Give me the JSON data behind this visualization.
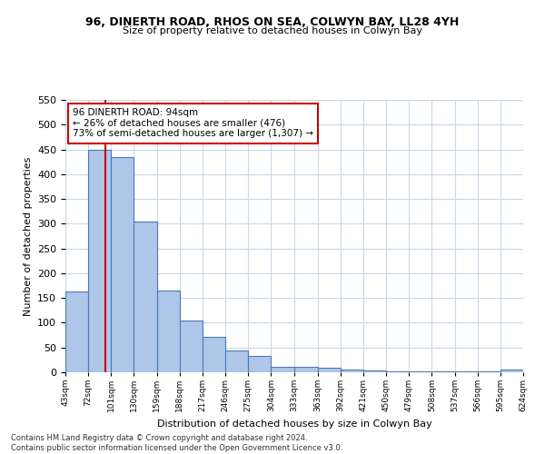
{
  "title1": "96, DINERTH ROAD, RHOS ON SEA, COLWYN BAY, LL28 4YH",
  "title2": "Size of property relative to detached houses in Colwyn Bay",
  "xlabel": "Distribution of detached houses by size in Colwyn Bay",
  "ylabel": "Number of detached properties",
  "footer1": "Contains HM Land Registry data © Crown copyright and database right 2024.",
  "footer2": "Contains public sector information licensed under the Open Government Licence v3.0.",
  "annotation_line1": "96 DINERTH ROAD: 94sqm",
  "annotation_line2": "← 26% of detached houses are smaller (476)",
  "annotation_line3": "73% of semi-detached houses are larger (1,307) →",
  "bar_color": "#aec6e8",
  "bar_edge_color": "#4a7ab5",
  "vline_color": "#cc0000",
  "vline_x": 94,
  "bin_edges": [
    43,
    72,
    101,
    130,
    159,
    188,
    217,
    246,
    275,
    304,
    333,
    363,
    392,
    421,
    450,
    479,
    508,
    537,
    566,
    595,
    624
  ],
  "bar_heights": [
    163,
    450,
    435,
    305,
    165,
    105,
    72,
    44,
    33,
    11,
    11,
    9,
    5,
    3,
    2,
    2,
    2,
    1,
    1,
    5
  ],
  "tick_labels": [
    "43sqm",
    "72sqm",
    "101sqm",
    "130sqm",
    "159sqm",
    "188sqm",
    "217sqm",
    "246sqm",
    "275sqm",
    "304sqm",
    "333sqm",
    "363sqm",
    "392sqm",
    "421sqm",
    "450sqm",
    "479sqm",
    "508sqm",
    "537sqm",
    "566sqm",
    "595sqm",
    "624sqm"
  ],
  "ylim": [
    0,
    550
  ],
  "background_color": "#ffffff",
  "grid_color": "#c8d8e8"
}
